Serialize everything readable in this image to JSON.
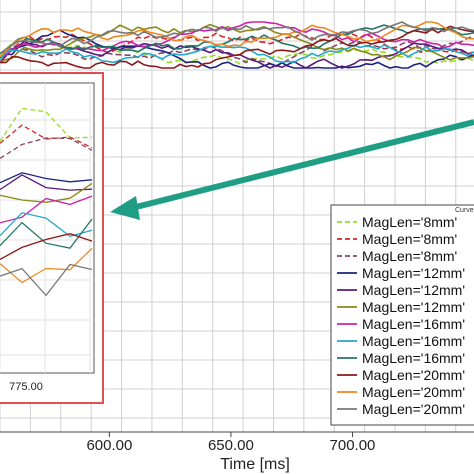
{
  "chart_data": {
    "type": "line",
    "title": "",
    "xlabel": "Time [ms]",
    "ylabel": "",
    "xlim": [
      555,
      750
    ],
    "ylim": [
      0,
      100
    ],
    "grid": true,
    "x_ticks": [
      "600.00",
      "650.00",
      "700.00"
    ],
    "x_tick_values": [
      600,
      650,
      700
    ],
    "legend": {
      "title": "Curve",
      "placement": "bottom-right",
      "entries": [
        {
          "label": "MagLen='8mm'",
          "color": "#99dd22",
          "dash": "dashed"
        },
        {
          "label": "MagLen='8mm'",
          "color": "#dd2222",
          "dash": "dashed"
        },
        {
          "label": "MagLen='8mm'",
          "color": "#884466",
          "dash": "dashed"
        },
        {
          "label": "MagLen='12mm'",
          "color": "#1a237e",
          "dash": "solid"
        },
        {
          "label": "MagLen='12mm'",
          "color": "#5a1a7e",
          "dash": "solid"
        },
        {
          "label": "MagLen='12mm'",
          "color": "#8a8a1a",
          "dash": "solid"
        },
        {
          "label": "MagLen='16mm'",
          "color": "#cc22aa",
          "dash": "solid"
        },
        {
          "label": "MagLen='16mm'",
          "color": "#22aacc",
          "dash": "solid"
        },
        {
          "label": "MagLen='16mm'",
          "color": "#227766",
          "dash": "solid"
        },
        {
          "label": "MagLen='20mm'",
          "color": "#8a1a1a",
          "dash": "solid"
        },
        {
          "label": "MagLen='20mm'",
          "color": "#ee8822",
          "dash": "solid"
        },
        {
          "label": "MagLen='20mm'",
          "color": "#777777",
          "dash": "solid"
        }
      ]
    },
    "inset": {
      "tick_label": "775.00",
      "border_color": "#e05050"
    },
    "annotation": {
      "type": "arrow",
      "color": "#1f9e85",
      "points_to": "inset"
    }
  }
}
